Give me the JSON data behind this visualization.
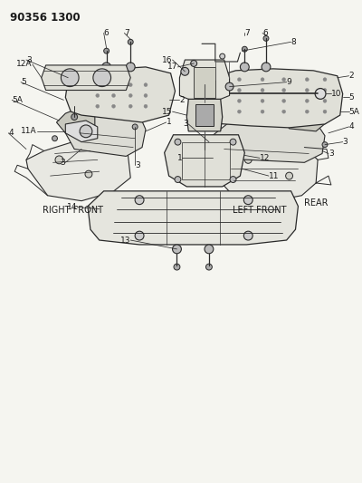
{
  "title": "90356 1300",
  "background_color": "#f5f5f0",
  "text_color": "#1a1a1a",
  "title_fontsize": 8.5,
  "label_fontsize": 6.5,
  "fig_width": 4.0,
  "fig_height": 5.33,
  "right_front_label": "RIGHT FRONT",
  "left_front_label": "LEFT FRONT",
  "rear_label": "REAR"
}
